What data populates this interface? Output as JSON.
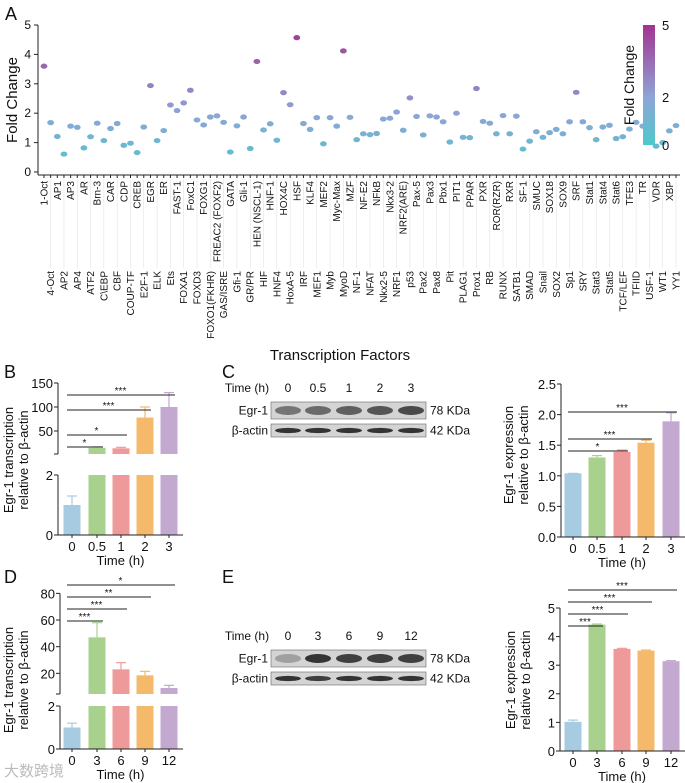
{
  "panel_labels": [
    "A",
    "B",
    "C",
    "D",
    "E"
  ],
  "watermark": "大数跨境",
  "chart_data": [
    {
      "id": "A",
      "type": "scatter",
      "xlabel": "Transcription Factors",
      "ylabel": "Fold Change",
      "ylim": [
        0,
        5
      ],
      "yticks": [
        "0",
        "1",
        "2",
        "3",
        "4",
        "5"
      ],
      "colorbar": {
        "title": "Fold Change",
        "ticks": [
          "0",
          "2",
          "5"
        ],
        "range": [
          0,
          5
        ],
        "colors": [
          "#4ec9cb",
          "#8fa4d6",
          "#a2338f"
        ]
      },
      "categories": [
        "1-Oct",
        "4-Oct",
        "AP1",
        "AP2",
        "AP3",
        "AP4",
        "AR",
        "ATF2",
        "Brn-3",
        "C\\EBP",
        "CAR",
        "CBF",
        "CDP",
        "COUP-TF",
        "CREB",
        "E2F-1",
        "EGR",
        "ELK",
        "ER",
        "Ets",
        "FAST-1",
        "FOXA1",
        "FoxC1",
        "FOXD3",
        "FOXG1",
        "FOXO1(FKHR)",
        "FREAC2 (FOXF2)",
        "GAS/ISRE",
        "GATA",
        "Gfi-1",
        "Gli-1",
        "GR/PR",
        "HEN (NSCL-1)",
        "HIF",
        "HNF-1",
        "HNF4",
        "HOX4C",
        "HoxA-5",
        "HSF",
        "IRF",
        "KLF4",
        "MEF1",
        "MEF2",
        "Myb",
        "Myc-Max",
        "MyoD",
        "MZF",
        "NF-1",
        "NF-E2",
        "NFAT",
        "NFkB",
        "Nkx2-5",
        "Nkx3-2",
        "NRF1",
        "NRF2(ARE)",
        "p53",
        "Pax-5",
        "Pax2",
        "Pax3",
        "Pax8",
        "Pbx1",
        "Pit",
        "PIT1",
        "PLAG1",
        "PPAR",
        "Prox1",
        "PXR",
        "RB",
        "ROR(RZR)",
        "RUNX",
        "RXR",
        "SATB1",
        "SF-1",
        "SMAD",
        "SMUC",
        "Snail",
        "SOX18",
        "SOX2",
        "SOX9",
        "Sp1",
        "SRF",
        "SRY",
        "Stat1",
        "Stat3",
        "Stat4",
        "Stat5",
        "Stat6",
        "TCF/LEF",
        "TFE3",
        "TFIID",
        "TR",
        "USF-1",
        "VDR",
        "WT1",
        "XBP",
        "YY1"
      ],
      "values": [
        3.6,
        1.68,
        1.21,
        0.61,
        1.56,
        1.52,
        0.82,
        1.2,
        1.66,
        1.07,
        1.48,
        1.65,
        0.91,
        0.98,
        0.66,
        1.53,
        2.94,
        1.07,
        1.41,
        2.28,
        2.09,
        2.35,
        2.78,
        1.77,
        1.6,
        1.87,
        1.91,
        1.69,
        0.68,
        1.57,
        1.87,
        0.8,
        3.76,
        1.43,
        1.64,
        1.08,
        2.7,
        2.29,
        4.57,
        1.65,
        1.45,
        1.85,
        0.96,
        1.85,
        1.56,
        4.12,
        1.86,
        1.1,
        1.3,
        1.27,
        1.31,
        1.8,
        1.83,
        2.04,
        1.42,
        2.52,
        1.89,
        1.26,
        1.91,
        1.87,
        1.71,
        1.02,
        2.0,
        1.18,
        1.17,
        2.84,
        1.72,
        1.66,
        1.3,
        1.92,
        1.3,
        1.9,
        0.78,
        1.05,
        1.37,
        1.18,
        1.34,
        1.45,
        1.3,
        1.71,
        2.71,
        1.71,
        1.51,
        1.1,
        1.53,
        1.59,
        1.14,
        1.2,
        1.46,
        1.69,
        1.56,
        1.12,
        0.88,
        1.0,
        1.4,
        1.58
      ]
    },
    {
      "id": "B",
      "type": "bar",
      "broken_axis": true,
      "xlabel": "Time (h)",
      "ylabel": [
        "Egr-1 transcription",
        "relative to β-actin"
      ],
      "categories": [
        "0",
        "0.5",
        "1",
        "2",
        "3"
      ],
      "values": [
        1.0,
        15,
        14,
        78,
        100
      ],
      "errors": [
        0.3,
        2,
        2,
        22,
        30
      ],
      "yticks_lower": [
        "0",
        "2"
      ],
      "yticks_upper": [
        "50",
        "100",
        "150"
      ],
      "ylim_lower": [
        0,
        2
      ],
      "ylim_upper": [
        0,
        150
      ],
      "significance": [
        {
          "vs": 1,
          "label": "*"
        },
        {
          "vs": 2,
          "label": "*"
        },
        {
          "vs": 3,
          "label": "***"
        },
        {
          "vs": 4,
          "label": "***"
        }
      ]
    },
    {
      "id": "C",
      "type": "bar",
      "xlabel": "Time (h)",
      "ylabel": [
        "Egr-1 expression",
        "relative to β-actin"
      ],
      "categories": [
        "0",
        "0.5",
        "1",
        "2",
        "3"
      ],
      "values": [
        1.04,
        1.3,
        1.39,
        1.54,
        1.89
      ],
      "errors": [
        0.0,
        0.03,
        0.03,
        0.04,
        0.14
      ],
      "yticks": [
        "0.0",
        "0.5",
        "1.0",
        "1.5",
        "2.0",
        "2.5"
      ],
      "ylim": [
        0,
        2.5
      ],
      "significance": [
        {
          "vs": 2,
          "label": "*"
        },
        {
          "vs": 3,
          "label": "***"
        },
        {
          "vs": 4,
          "label": "***"
        }
      ]
    },
    {
      "id": "D",
      "type": "bar",
      "broken_axis": true,
      "xlabel": "Time (h)",
      "ylabel": [
        "Egr-1 transcription",
        "relative to β-actin"
      ],
      "categories": [
        "0",
        "3",
        "6",
        "9",
        "12"
      ],
      "values": [
        1.0,
        47,
        23,
        18.5,
        9
      ],
      "errors": [
        0.2,
        11,
        5,
        3,
        2
      ],
      "yticks_lower": [
        "0",
        "2"
      ],
      "yticks_upper": [
        "20",
        "40",
        "60",
        "80"
      ],
      "ylim_lower": [
        0,
        2
      ],
      "ylim_upper": [
        0,
        80
      ],
      "significance": [
        {
          "vs": 1,
          "label": "***"
        },
        {
          "vs": 2,
          "label": "***"
        },
        {
          "vs": 3,
          "label": "**"
        },
        {
          "vs": 4,
          "label": "*"
        }
      ]
    },
    {
      "id": "E",
      "type": "bar",
      "xlabel": "Time (h)",
      "ylabel": [
        "Egr-1 expression",
        "relative to β-actin"
      ],
      "categories": [
        "0",
        "3",
        "6",
        "9",
        "12"
      ],
      "values": [
        1.02,
        4.42,
        3.57,
        3.51,
        3.14
      ],
      "errors": [
        0.06,
        0.02,
        0.02,
        0.02,
        0.02
      ],
      "yticks": [
        "0",
        "1",
        "2",
        "3",
        "4",
        "5"
      ],
      "ylim": [
        0,
        5
      ],
      "significance": [
        {
          "vs": 1,
          "label": "***"
        },
        {
          "vs": 2,
          "label": "***"
        },
        {
          "vs": 3,
          "label": "***"
        },
        {
          "vs": 4,
          "label": "***"
        }
      ]
    }
  ],
  "bar_colors": [
    "#a7cbe0",
    "#a9d18e",
    "#ef9a9a",
    "#f5b96b",
    "#c3a8cf"
  ],
  "blots": {
    "C": {
      "time_label": "Time (h)",
      "lanes": [
        "0",
        "0.5",
        "1",
        "2",
        "3"
      ],
      "rows": [
        {
          "name": "Egr-1",
          "size": "78 KDa",
          "intensity": [
            0.55,
            0.6,
            0.65,
            0.7,
            0.75
          ]
        },
        {
          "name": "β-actin",
          "size": "42 KDa",
          "intensity": [
            0.85,
            0.85,
            0.85,
            0.85,
            0.85
          ]
        }
      ]
    },
    "E": {
      "time_label": "Time (h)",
      "lanes": [
        "0",
        "3",
        "6",
        "9",
        "12"
      ],
      "rows": [
        {
          "name": "Egr-1",
          "size": "78 KDa",
          "intensity": [
            0.35,
            0.85,
            0.8,
            0.8,
            0.8
          ]
        },
        {
          "name": "β-actin",
          "size": "42 KDa",
          "intensity": [
            0.85,
            0.8,
            0.85,
            0.85,
            0.85
          ]
        }
      ]
    }
  }
}
